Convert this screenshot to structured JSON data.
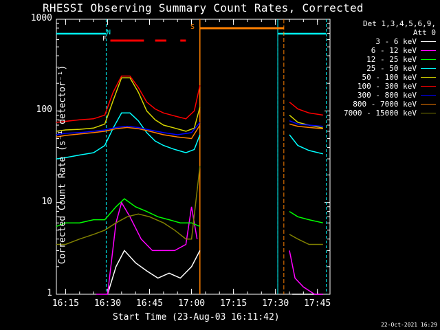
{
  "title": "RHESSI Observing Summary Count Rates, Corrected",
  "footer_timestamp": "22-Oct-2021 16:29",
  "legend_header": [
    "Det 1,3,4,5,6,9,",
    "Att 0"
  ],
  "markers": {
    "N": "N",
    "F": "F",
    "S": "S"
  },
  "colors": {
    "night": "#00ffff",
    "saa": "#ff8000",
    "flare": "#ff0000",
    "axis": "#ffffff"
  },
  "chart_data": {
    "type": "line",
    "title": "RHESSI Observing Summary Count Rates, Corrected",
    "xlabel": "Start Time (23-Aug-03 16:11:42)",
    "ylabel": "Corrected Count Rate (s⁻¹ detector⁻¹)",
    "yscale": "log",
    "ylim": [
      1,
      1000
    ],
    "xlim": [
      "16:11:42",
      "17:49:30"
    ],
    "x_ticks": [
      "16:15",
      "16:30",
      "16:45",
      "17:00",
      "17:15",
      "17:30",
      "17:45"
    ],
    "y_ticks": [
      "1",
      "10",
      "100",
      "1000"
    ],
    "legend_placement": "top-right",
    "series": [
      {
        "name": "3 - 6 keV",
        "color": "#ffffff",
        "x": [
          "16:30",
          "16:33",
          "16:36",
          "16:40",
          "16:44",
          "16:48",
          "16:52",
          "16:56",
          "17:00",
          "17:03",
          "17:36",
          "17:40",
          "17:44",
          "17:47"
        ],
        "y": [
          1,
          2.0,
          3.0,
          2.2,
          1.8,
          1.5,
          1.7,
          1.5,
          2.0,
          3.0,
          1,
          1,
          1,
          1
        ]
      },
      {
        "name": "6 - 12 keV",
        "color": "#ff00ff",
        "x": [
          "16:26",
          "16:30",
          "16:33",
          "16:35",
          "16:38",
          "16:42",
          "16:46",
          "16:50",
          "16:54",
          "16:58",
          "17:00",
          "17:02",
          "17:35",
          "17:37",
          "17:40",
          "17:44",
          "17:47"
        ],
        "y": [
          1,
          1,
          6.0,
          10.0,
          7.0,
          4.0,
          3.0,
          3.0,
          3.0,
          3.5,
          9.0,
          4.0,
          3.0,
          1.5,
          1.2,
          1,
          1
        ]
      },
      {
        "name": "12 - 25 keV",
        "color": "#00ff00",
        "x": [
          "16:11:42",
          "16:15",
          "16:20",
          "16:25",
          "16:29",
          "16:33",
          "16:36",
          "16:40",
          "16:44",
          "16:48",
          "16:52",
          "16:56",
          "17:00",
          "17:03",
          "17:35",
          "17:38",
          "17:42",
          "17:47"
        ],
        "y": [
          5.5,
          6.0,
          6.0,
          6.5,
          6.5,
          9.0,
          11.0,
          9.0,
          8.0,
          7.0,
          6.5,
          6.0,
          6.0,
          5.5,
          8.0,
          7.0,
          6.5,
          6.0
        ]
      },
      {
        "name": "25 - 50 keV",
        "color": "#00ffff",
        "x": [
          "16:11:42",
          "16:15",
          "16:20",
          "16:25",
          "16:29",
          "16:32",
          "16:35",
          "16:38",
          "16:41",
          "16:44",
          "16:47",
          "16:50",
          "16:54",
          "16:58",
          "17:01",
          "17:03",
          "17:35",
          "17:38",
          "17:42",
          "17:47"
        ],
        "y": [
          30,
          31,
          33,
          35,
          42,
          65,
          95,
          95,
          78,
          58,
          47,
          42,
          38,
          35,
          38,
          55,
          55,
          42,
          37,
          34
        ]
      },
      {
        "name": "50 - 100 keV",
        "color": "#d4d400",
        "x": [
          "16:11:42",
          "16:15",
          "16:20",
          "16:25",
          "16:29",
          "16:32",
          "16:35",
          "16:38",
          "16:41",
          "16:44",
          "16:47",
          "16:50",
          "16:54",
          "16:58",
          "17:01",
          "17:03",
          "17:35",
          "17:38",
          "17:42",
          "17:47"
        ],
        "y": [
          60,
          62,
          63,
          65,
          72,
          130,
          230,
          230,
          160,
          100,
          80,
          70,
          65,
          60,
          65,
          110,
          90,
          75,
          70,
          65
        ]
      },
      {
        "name": "100 - 300 keV",
        "color": "#ff0000",
        "x": [
          "16:11:42",
          "16:15",
          "16:20",
          "16:25",
          "16:29",
          "16:32",
          "16:35",
          "16:38",
          "16:41",
          "16:44",
          "16:47",
          "16:50",
          "16:54",
          "16:58",
          "17:01",
          "17:03",
          "17:35",
          "17:38",
          "17:42",
          "17:47"
        ],
        "y": [
          75,
          77,
          80,
          82,
          90,
          160,
          240,
          240,
          180,
          125,
          105,
          95,
          88,
          82,
          100,
          190,
          125,
          105,
          95,
          90
        ]
      },
      {
        "name": "300 - 800 keV",
        "color": "#0000ff",
        "x": [
          "16:11:42",
          "16:15",
          "16:20",
          "16:25",
          "16:29",
          "16:33",
          "16:37",
          "16:41",
          "16:45",
          "16:50",
          "16:55",
          "17:00",
          "17:03",
          "17:35",
          "17:38",
          "17:42",
          "17:47"
        ],
        "y": [
          55,
          57,
          58,
          60,
          62,
          66,
          68,
          66,
          62,
          58,
          55,
          58,
          75,
          78,
          72,
          70,
          68
        ]
      },
      {
        "name": "800 - 7000 keV",
        "color": "#ff8000",
        "x": [
          "16:11:42",
          "16:15",
          "16:20",
          "16:25",
          "16:29",
          "16:33",
          "16:37",
          "16:41",
          "16:45",
          "16:50",
          "16:55",
          "17:00",
          "17:03",
          "17:35",
          "17:38",
          "17:42",
          "17:47"
        ],
        "y": [
          52,
          54,
          56,
          58,
          60,
          64,
          66,
          64,
          60,
          55,
          52,
          50,
          70,
          72,
          68,
          66,
          64
        ]
      },
      {
        "name": "7000 - 15000 keV",
        "color": "#808000",
        "x": [
          "16:11:42",
          "16:15",
          "16:20",
          "16:25",
          "16:29",
          "16:33",
          "16:37",
          "16:41",
          "16:45",
          "16:50",
          "16:54",
          "16:58",
          "17:00",
          "17:03",
          "17:35",
          "17:38",
          "17:42",
          "17:47"
        ],
        "y": [
          3.5,
          3.5,
          4.0,
          4.5,
          5.0,
          6.0,
          7.0,
          7.5,
          7.0,
          6.0,
          5.0,
          4.0,
          4.0,
          25,
          4.5,
          4.0,
          3.5,
          3.5
        ]
      }
    ],
    "night_intervals": [
      [
        "16:11:42",
        "16:29:30"
      ],
      [
        "17:30:50",
        "17:48:10"
      ]
    ],
    "saa_interval": [
      "17:03:00",
      "17:33:00"
    ],
    "flare_segments": [
      [
        "16:31",
        "16:43"
      ],
      [
        "16:47",
        "16:51"
      ],
      [
        "16:56",
        "16:58"
      ]
    ]
  }
}
